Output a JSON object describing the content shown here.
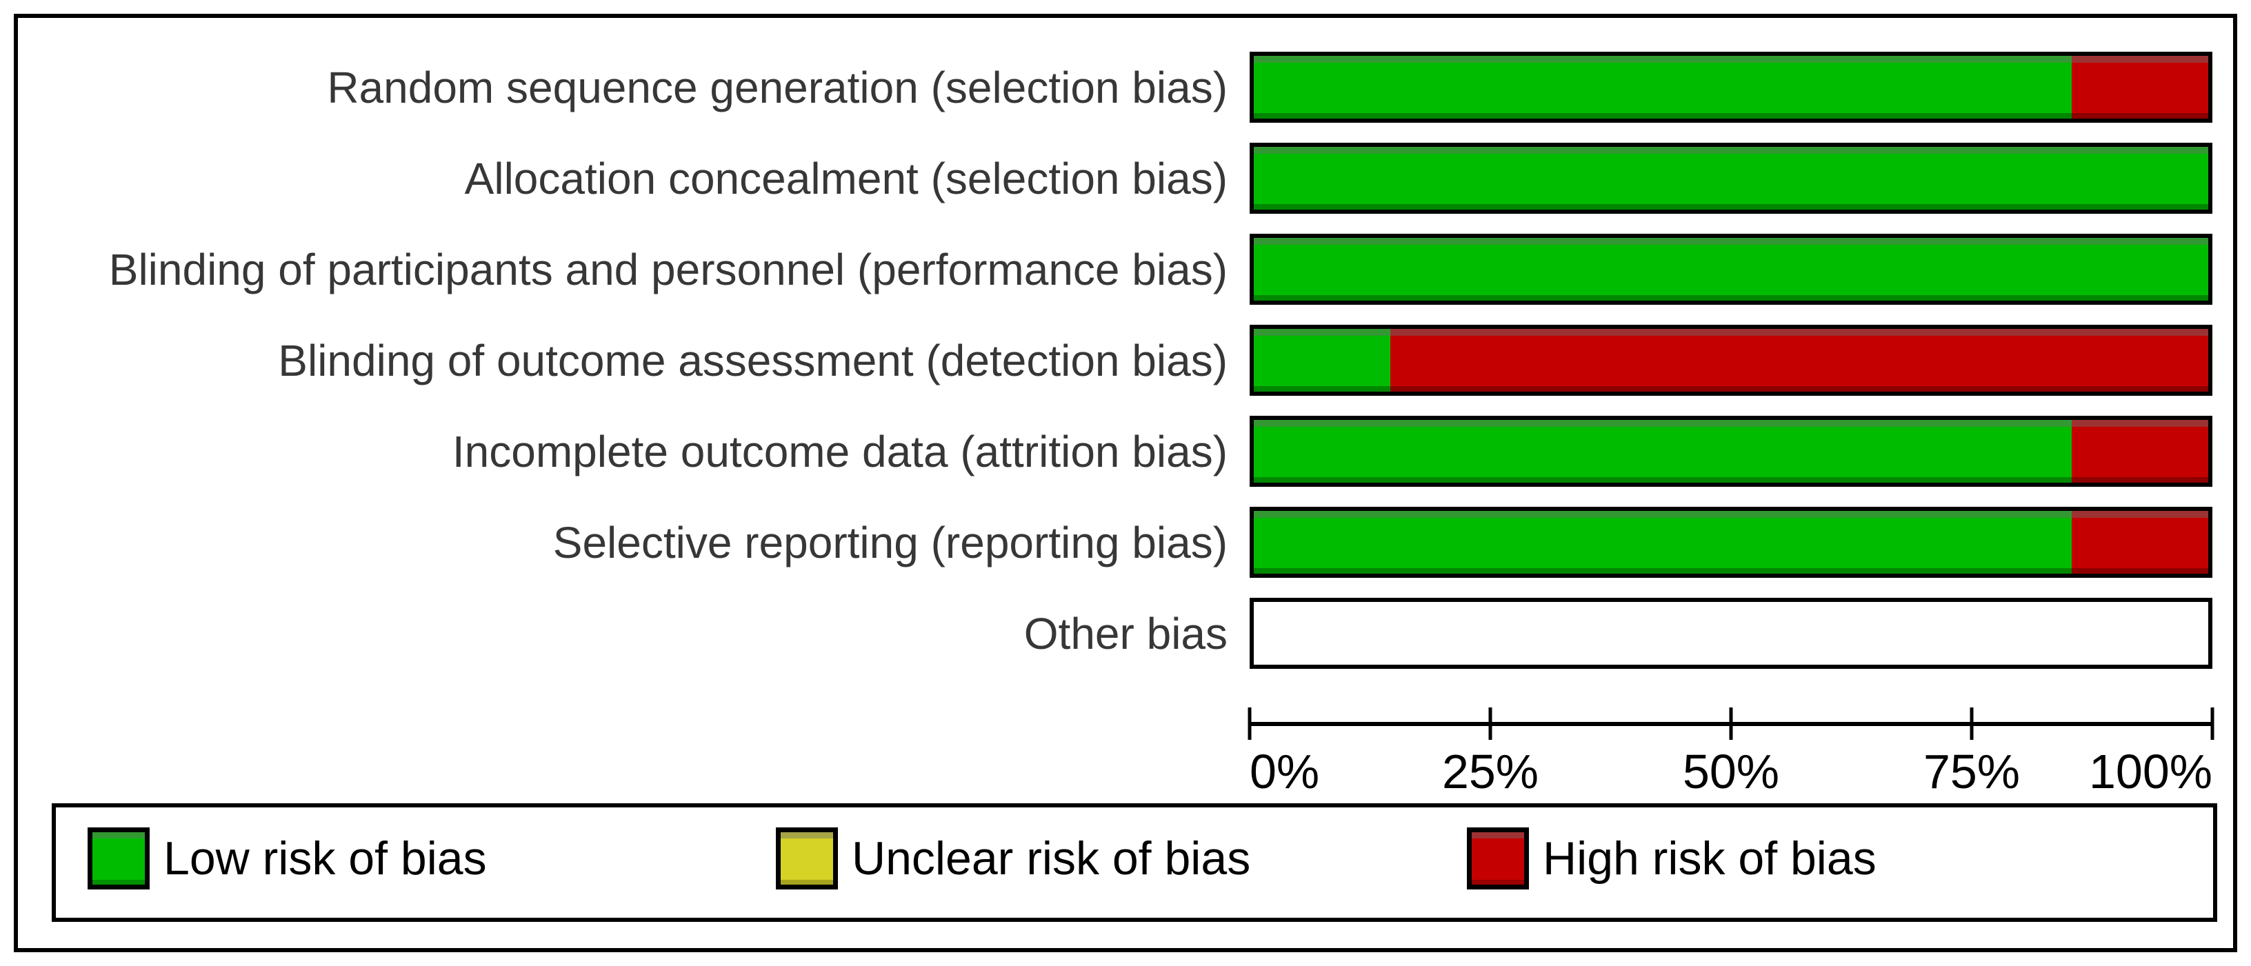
{
  "colors": {
    "low_risk": "#00bc00",
    "unclear_risk": "#d6d226",
    "high_risk": "#c40000",
    "bar_border": "#000000",
    "label_text": "#373737",
    "axis_text": "#000000"
  },
  "chart_data": {
    "type": "bar",
    "orientation": "horizontal",
    "stacked": true,
    "unit": "percent",
    "title": "",
    "xlabel": "",
    "ylabel": "",
    "grid": false,
    "legend_position": "bottom",
    "categories": [
      "Random sequence generation (selection bias)",
      "Allocation concealment (selection bias)",
      "Blinding of participants and personnel (performance bias)",
      "Blinding of outcome assessment (detection bias)",
      "Incomplete outcome data (attrition bias)",
      "Selective reporting (reporting bias)",
      "Other bias"
    ],
    "series": [
      {
        "name": "Low risk of bias",
        "color": "#00bc00",
        "values": [
          85.7,
          100,
          100,
          14.3,
          85.7,
          85.7,
          0
        ]
      },
      {
        "name": "Unclear risk of bias",
        "color": "#d6d226",
        "values": [
          0,
          0,
          0,
          0,
          0,
          0,
          0
        ]
      },
      {
        "name": "High risk of bias",
        "color": "#c40000",
        "values": [
          14.3,
          0,
          0,
          85.7,
          14.3,
          14.3,
          0
        ]
      }
    ],
    "x_axis": {
      "range": [
        0,
        100
      ],
      "tick_labels": [
        "0%",
        "25%",
        "50%",
        "75%",
        "100%"
      ]
    }
  },
  "legend": {
    "items": [
      {
        "label": "Low risk of bias",
        "color": "#00bc00"
      },
      {
        "label": "Unclear risk of bias",
        "color": "#d6d226"
      },
      {
        "label": "High risk of bias",
        "color": "#c40000"
      }
    ]
  }
}
